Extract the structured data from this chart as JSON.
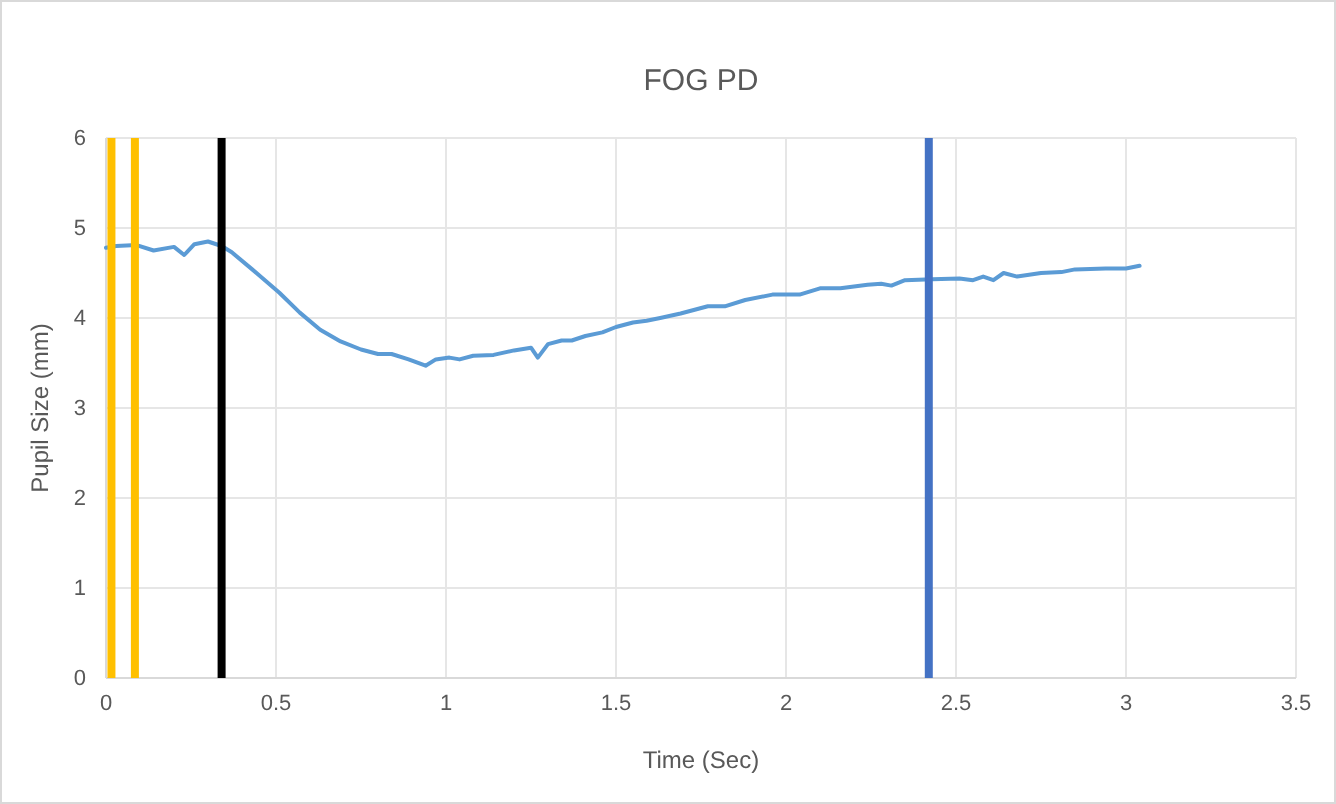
{
  "chart_data": {
    "type": "line",
    "title": "FOG PD",
    "xlabel": "Time (Sec)",
    "ylabel": "Pupil Size (mm)",
    "xlim": [
      0,
      3.5
    ],
    "xticks": [
      0,
      0.5,
      1,
      1.5,
      2,
      2.5,
      3,
      3.5
    ],
    "ylim": [
      0,
      6
    ],
    "yticks": [
      0,
      1,
      2,
      3,
      4,
      5,
      6
    ],
    "grid": true,
    "series": [
      {
        "color": "#5b9bd5",
        "x": [
          0,
          0.03,
          0.09,
          0.14,
          0.2,
          0.23,
          0.26,
          0.3,
          0.34,
          0.37,
          0.43,
          0.51,
          0.57,
          0.63,
          0.69,
          0.75,
          0.8,
          0.84,
          0.89,
          0.94,
          0.97,
          1.01,
          1.04,
          1.08,
          1.14,
          1.2,
          1.25,
          1.27,
          1.3,
          1.34,
          1.37,
          1.41,
          1.46,
          1.5,
          1.55,
          1.59,
          1.63,
          1.69,
          1.77,
          1.82,
          1.88,
          1.96,
          2.04,
          2.1,
          2.16,
          2.24,
          2.28,
          2.31,
          2.35,
          2.43,
          2.51,
          2.55,
          2.58,
          2.61,
          2.64,
          2.68,
          2.75,
          2.81,
          2.85,
          2.94,
          3,
          3.04
        ],
        "values": [
          4.78,
          4.8,
          4.81,
          4.75,
          4.79,
          4.7,
          4.82,
          4.85,
          4.8,
          4.73,
          4.54,
          4.28,
          4.06,
          3.87,
          3.74,
          3.65,
          3.6,
          3.6,
          3.54,
          3.47,
          3.54,
          3.56,
          3.54,
          3.58,
          3.59,
          3.64,
          3.67,
          3.56,
          3.71,
          3.75,
          3.75,
          3.8,
          3.84,
          3.9,
          3.95,
          3.97,
          4.0,
          4.05,
          4.13,
          4.13,
          4.2,
          4.26,
          4.26,
          4.33,
          4.33,
          4.37,
          4.38,
          4.36,
          4.42,
          4.43,
          4.44,
          4.42,
          4.46,
          4.42,
          4.5,
          4.46,
          4.5,
          4.51,
          4.54,
          4.55,
          4.55,
          4.58
        ]
      }
    ],
    "ref_lines": [
      {
        "axis": "x",
        "value": 0.016,
        "color": "#ffc000"
      },
      {
        "axis": "x",
        "value": 0.085,
        "color": "#ffc000"
      },
      {
        "axis": "x",
        "value": 0.34,
        "color": "#000000"
      },
      {
        "axis": "x",
        "value": 2.42,
        "color": "#4472c4"
      }
    ]
  }
}
